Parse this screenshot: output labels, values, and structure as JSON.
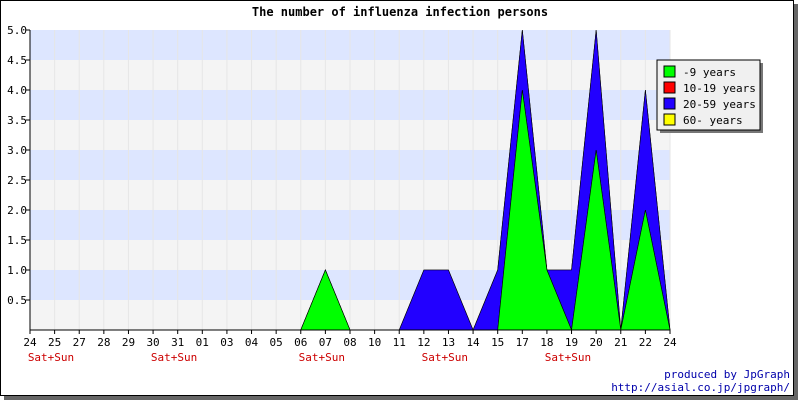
{
  "chart_data": {
    "type": "area",
    "title": "The number of influenza infection persons",
    "x": [
      "24",
      "25",
      "27",
      "28",
      "29",
      "30",
      "31",
      "01",
      "03",
      "04",
      "05",
      "06",
      "07",
      "08",
      "10",
      "11",
      "12",
      "13",
      "14",
      "15",
      "17",
      "18",
      "19",
      "20",
      "21",
      "22",
      "24"
    ],
    "weekend_marks": [
      {
        "index": 0,
        "label": "Sat+Sun"
      },
      {
        "index": 5,
        "label": "Sat+Sun"
      },
      {
        "index": 11,
        "label": "Sat+Sun"
      },
      {
        "index": 16,
        "label": "Sat+Sun"
      },
      {
        "index": 21,
        "label": "Sat+Sun"
      }
    ],
    "ylim": [
      0,
      5
    ],
    "y_ticks": [
      "0.5",
      "1.0",
      "1.5",
      "2.0",
      "2.5",
      "3.0",
      "3.5",
      "4.0",
      "4.5",
      "5.0"
    ],
    "stacked": true,
    "series": [
      {
        "name": "-9 years",
        "color": "#00ff00",
        "values": [
          0,
          0,
          0,
          0,
          0,
          0,
          0,
          0,
          0,
          0,
          0,
          0,
          1,
          0,
          0,
          0,
          0,
          0,
          0,
          0,
          4,
          1,
          0,
          3,
          0,
          2,
          0
        ]
      },
      {
        "name": "10-19 years",
        "color": "#ff0000",
        "values": [
          0,
          0,
          0,
          0,
          0,
          0,
          0,
          0,
          0,
          0,
          0,
          0,
          0,
          0,
          0,
          0,
          0,
          0,
          0,
          0,
          0,
          0,
          0,
          0,
          0,
          0,
          0
        ]
      },
      {
        "name": "20-59 years",
        "color": "#2200ff",
        "values": [
          0,
          0,
          0,
          0,
          0,
          0,
          0,
          0,
          0,
          0,
          0,
          0,
          0,
          0,
          0,
          0,
          1,
          1,
          0,
          1,
          1,
          0,
          1,
          2,
          0,
          2,
          0
        ]
      },
      {
        "name": "60- years",
        "color": "#ffff00",
        "values": [
          0,
          0,
          0,
          0,
          0,
          0,
          0,
          0,
          0,
          0,
          0,
          0,
          0,
          0,
          0,
          0,
          0,
          0,
          0,
          0,
          0,
          0,
          0,
          0,
          0,
          0,
          0
        ]
      }
    ],
    "legend_position": "top-right",
    "band_colors": [
      "#dde6ff",
      "#f4f4f4"
    ],
    "weekend_label_color": "#cc0000"
  },
  "credit": {
    "line1": "produced by JpGraph",
    "line2": "http://asial.co.jp/jpgraph/"
  }
}
